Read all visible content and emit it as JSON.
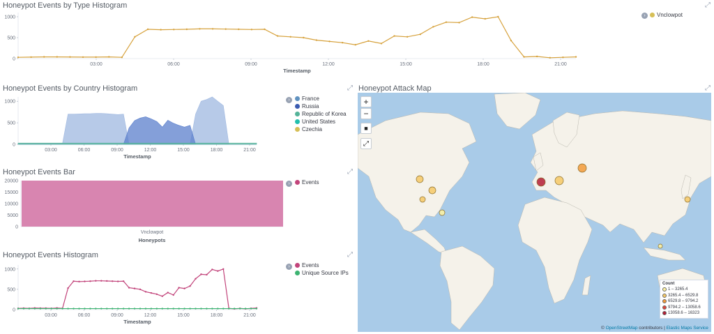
{
  "panels": {
    "type_histogram": {
      "title": "Honeypot Events by Type Histogram",
      "legend": [
        {
          "label": "Vnclowpot",
          "color": "#d6bf57"
        }
      ],
      "chart_data": {
        "type": "line",
        "x_ticks": [
          "03:00",
          "06:00",
          "09:00",
          "12:00",
          "15:00",
          "18:00",
          "21:00"
        ],
        "xlabel": "Timestamp",
        "y_ticks": [
          "0",
          "500",
          "1000"
        ],
        "ylim": [
          0,
          1100
        ],
        "series": [
          {
            "name": "Vnclowpot",
            "color": "#d6a13b",
            "values": [
              30,
              35,
              40,
              40,
              38,
              35,
              35,
              40,
              30,
              520,
              700,
              690,
              695,
              700,
              710,
              710,
              705,
              700,
              695,
              700,
              540,
              520,
              500,
              440,
              410,
              380,
              330,
              420,
              360,
              540,
              520,
              580,
              760,
              870,
              860,
              990,
              950,
              1000,
              430,
              40,
              50,
              20,
              30,
              40
            ]
          }
        ]
      }
    },
    "country_histogram": {
      "title": "Honeypot Events by Country Histogram",
      "legend": [
        {
          "label": "France",
          "color": "#6092c0"
        },
        {
          "label": "Russia",
          "color": "#3b5bb0"
        },
        {
          "label": "Republic of Korea",
          "color": "#54b399"
        },
        {
          "label": "United States",
          "color": "#22bfae"
        },
        {
          "label": "Czechia",
          "color": "#d6bf57"
        }
      ],
      "chart_data": {
        "type": "area",
        "x_ticks": [
          "03:00",
          "06:00",
          "09:00",
          "12:00",
          "15:00",
          "18:00",
          "21:00"
        ],
        "xlabel": "Timestamp",
        "y_ticks": [
          "0",
          "500",
          "1000"
        ],
        "ylim": [
          0,
          1100
        ],
        "series": [
          {
            "name": "France",
            "color": "#9fb8e0",
            "values": [
              20,
              20,
              20,
              20,
              20,
              20,
              20,
              20,
              20,
              700,
              700,
              705,
              710,
              710,
              720,
              720,
              710,
              700,
              690,
              700,
              0,
              0,
              0,
              0,
              0,
              0,
              0,
              0,
              0,
              0,
              0,
              0,
              700,
              1000,
              1040,
              1100,
              1000,
              900,
              0,
              0,
              0,
              0,
              0,
              0
            ]
          },
          {
            "name": "Russia",
            "color": "#5b7fcc",
            "values": [
              0,
              0,
              0,
              0,
              0,
              0,
              0,
              0,
              0,
              0,
              0,
              0,
              0,
              0,
              0,
              0,
              0,
              0,
              0,
              0,
              380,
              550,
              610,
              640,
              590,
              530,
              400,
              560,
              490,
              440,
              400,
              440,
              0,
              0,
              0,
              0,
              0,
              0,
              0,
              0,
              0,
              0,
              0,
              0
            ]
          },
          {
            "name": "Republic of Korea",
            "color": "#54b399",
            "values": [
              30,
              30,
              30,
              30,
              30,
              30,
              30,
              30,
              30,
              30,
              30,
              30,
              30,
              30,
              30,
              30,
              30,
              30,
              30,
              30,
              30,
              30,
              30,
              30,
              30,
              30,
              30,
              30,
              30,
              30,
              30,
              30,
              30,
              30,
              30,
              30,
              30,
              30,
              30,
              30,
              30,
              30,
              30,
              30
            ]
          }
        ]
      }
    },
    "events_bar": {
      "title": "Honeypot Events Bar",
      "legend": [
        {
          "label": "Events",
          "color": "#c2447b"
        }
      ],
      "chart_data": {
        "type": "bar",
        "categories": [
          "Vnclowpot"
        ],
        "values": [
          16323
        ],
        "xlabel": "Honeypots",
        "y_ticks": [
          "0",
          "5000",
          "10000",
          "15000",
          "20000"
        ],
        "ylim": [
          0,
          16323
        ]
      }
    },
    "events_histogram": {
      "title": "Honeypot Events Histogram",
      "legend": [
        {
          "label": "Events",
          "color": "#c2447b"
        },
        {
          "label": "Unique Source IPs",
          "color": "#3cb371"
        }
      ],
      "chart_data": {
        "type": "line",
        "x_ticks": [
          "03:00",
          "06:00",
          "09:00",
          "12:00",
          "15:00",
          "18:00",
          "21:00"
        ],
        "xlabel": "Timestamp",
        "y_ticks": [
          "0",
          "500",
          "1000"
        ],
        "ylim": [
          0,
          1100
        ],
        "series": [
          {
            "name": "Events",
            "color": "#c2447b",
            "values": [
              30,
              35,
              30,
              40,
              35,
              35,
              30,
              40,
              30,
              530,
              700,
              690,
              695,
              700,
              710,
              710,
              705,
              700,
              695,
              700,
              540,
              520,
              500,
              440,
              410,
              380,
              330,
              420,
              360,
              540,
              520,
              580,
              760,
              870,
              860,
              990,
              950,
              1000,
              30,
              20,
              30,
              20,
              30,
              40
            ]
          },
          {
            "name": "Unique Source IPs",
            "color": "#3cb371",
            "values": [
              25,
              25,
              25,
              25,
              25,
              25,
              25,
              25,
              25,
              25,
              25,
              25,
              25,
              25,
              25,
              25,
              25,
              25,
              25,
              25,
              25,
              25,
              25,
              25,
              25,
              25,
              25,
              25,
              25,
              25,
              25,
              25,
              25,
              25,
              25,
              25,
              25,
              25,
              25,
              25,
              25,
              25,
              25,
              25
            ]
          }
        ]
      }
    },
    "attack_map": {
      "title": "Honeypot Attack Map",
      "controls": {
        "zoom_in": "+",
        "zoom_out": "−",
        "draw_box": "■",
        "fit": "⤢"
      },
      "legend_title": "Count",
      "ranges": [
        {
          "label": "1 – 3265.4",
          "color": "#fff3a0"
        },
        {
          "label": "3265.4 – 6529.8",
          "color": "#f6c966"
        },
        {
          "label": "6529.8 – 9794.2",
          "color": "#f29b3a"
        },
        {
          "label": "9794.2 – 13058.6",
          "color": "#e0453a"
        },
        {
          "label": "13058.6 – 16323",
          "color": "#b41d35"
        }
      ],
      "attribution": {
        "prefix": "© ",
        "osm": "OpenStreetMap",
        "middle": " contributors | ",
        "ems": "Elastic Maps Service"
      }
    }
  }
}
